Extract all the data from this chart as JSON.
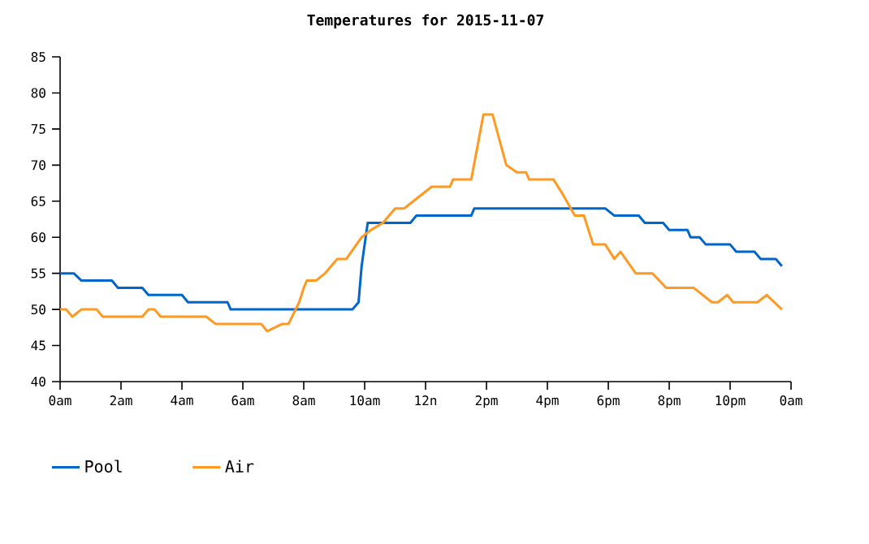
{
  "chart_data": {
    "type": "line",
    "title": "Temperatures for 2015-11-07",
    "xlim": [
      "2015-11-07T00:00",
      "2015-11-08T00:00"
    ],
    "xticks": [
      {
        "value": "2015-11-07T00:00",
        "label": "0am"
      },
      {
        "value": "2015-11-07T02:00",
        "label": "2am"
      },
      {
        "value": "2015-11-07T04:00",
        "label": "4am"
      },
      {
        "value": "2015-11-07T06:00",
        "label": "6am"
      },
      {
        "value": "2015-11-07T08:00",
        "label": "8am"
      },
      {
        "value": "2015-11-07T10:00",
        "label": "10am"
      },
      {
        "value": "2015-11-07T12:00",
        "label": "12n"
      },
      {
        "value": "2015-11-07T14:00",
        "label": "2pm"
      },
      {
        "value": "2015-11-07T16:00",
        "label": "4pm"
      },
      {
        "value": "2015-11-07T18:00",
        "label": "6pm"
      },
      {
        "value": "2015-11-07T20:00",
        "label": "8pm"
      },
      {
        "value": "2015-11-07T22:00",
        "label": "10pm"
      },
      {
        "value": "2015-11-08T00:00",
        "label": "0am"
      }
    ],
    "ylim": [
      40,
      85
    ],
    "yticks": [
      40,
      45,
      50,
      55,
      60,
      65,
      70,
      75,
      80,
      85
    ],
    "legend": "bottom left",
    "grid": false,
    "series": [
      {
        "name": "Pool",
        "color": "#0066cc",
        "x": [
          "2015-11-07T00:00",
          "2015-11-07T00:27",
          "2015-11-07T00:42",
          "2015-11-07T01:42",
          "2015-11-07T01:54",
          "2015-11-07T02:42",
          "2015-11-07T02:54",
          "2015-11-07T04:00",
          "2015-11-07T04:12",
          "2015-11-07T05:30",
          "2015-11-07T05:36",
          "2015-11-07T09:36",
          "2015-11-07T09:48",
          "2015-11-07T09:54",
          "2015-11-07T10:06",
          "2015-11-07T11:30",
          "2015-11-07T11:42",
          "2015-11-07T13:30",
          "2015-11-07T13:36",
          "2015-11-07T17:54",
          "2015-11-07T18:12",
          "2015-11-07T19:00",
          "2015-11-07T19:12",
          "2015-11-07T19:48",
          "2015-11-07T20:00",
          "2015-11-07T20:36",
          "2015-11-07T20:42",
          "2015-11-07T21:00",
          "2015-11-07T21:12",
          "2015-11-07T22:00",
          "2015-11-07T22:12",
          "2015-11-07T22:48",
          "2015-11-07T23:00",
          "2015-11-07T23:30",
          "2015-11-07T23:42"
        ],
        "values": [
          55,
          55,
          54,
          54,
          53,
          53,
          52,
          52,
          51,
          51,
          50,
          50,
          51,
          56,
          62,
          62,
          63,
          63,
          64,
          64,
          63,
          63,
          62,
          62,
          61,
          61,
          60,
          60,
          59,
          59,
          58,
          58,
          57,
          57,
          56
        ]
      },
      {
        "name": "Air",
        "color": "#ff9922",
        "x": [
          "2015-11-07T00:00",
          "2015-11-07T00:12",
          "2015-11-07T00:24",
          "2015-11-07T00:42",
          "2015-11-07T01:12",
          "2015-11-07T01:24",
          "2015-11-07T02:42",
          "2015-11-07T02:54",
          "2015-11-07T03:06",
          "2015-11-07T03:18",
          "2015-11-07T04:48",
          "2015-11-07T05:06",
          "2015-11-07T06:36",
          "2015-11-07T06:48",
          "2015-11-07T07:18",
          "2015-11-07T07:30",
          "2015-11-07T07:51",
          "2015-11-07T08:00",
          "2015-11-07T08:06",
          "2015-11-07T08:24",
          "2015-11-07T08:42",
          "2015-11-07T08:54",
          "2015-11-07T09:06",
          "2015-11-07T09:24",
          "2015-11-07T09:54",
          "2015-11-07T10:12",
          "2015-11-07T10:36",
          "2015-11-07T11:00",
          "2015-11-07T11:18",
          "2015-11-07T11:36",
          "2015-11-07T11:54",
          "2015-11-07T12:12",
          "2015-11-07T12:48",
          "2015-11-07T12:54",
          "2015-11-07T13:30",
          "2015-11-07T13:54",
          "2015-11-07T14:12",
          "2015-11-07T14:39",
          "2015-11-07T15:00",
          "2015-11-07T15:18",
          "2015-11-07T15:24",
          "2015-11-07T16:12",
          "2015-11-07T16:30",
          "2015-11-07T16:54",
          "2015-11-07T17:12",
          "2015-11-07T17:30",
          "2015-11-07T17:54",
          "2015-11-07T18:12",
          "2015-11-07T18:24",
          "2015-11-07T18:54",
          "2015-11-07T19:27",
          "2015-11-07T19:54",
          "2015-11-07T20:48",
          "2015-11-07T21:24",
          "2015-11-07T21:36",
          "2015-11-07T21:54",
          "2015-11-07T22:06",
          "2015-11-07T22:54",
          "2015-11-07T23:12",
          "2015-11-07T23:42"
        ],
        "values": [
          50,
          50,
          49,
          50,
          50,
          49,
          49,
          50,
          50,
          49,
          49,
          48,
          48,
          47,
          48,
          48,
          51,
          53,
          54,
          54,
          55,
          56,
          57,
          57,
          60,
          61,
          62,
          64,
          64,
          65,
          66,
          67,
          67,
          68,
          68,
          77,
          77,
          70,
          69,
          69,
          68,
          68,
          66,
          63,
          63,
          59,
          59,
          57,
          58,
          55,
          55,
          53,
          53,
          51,
          51,
          52,
          51,
          51,
          52,
          50
        ]
      }
    ]
  }
}
